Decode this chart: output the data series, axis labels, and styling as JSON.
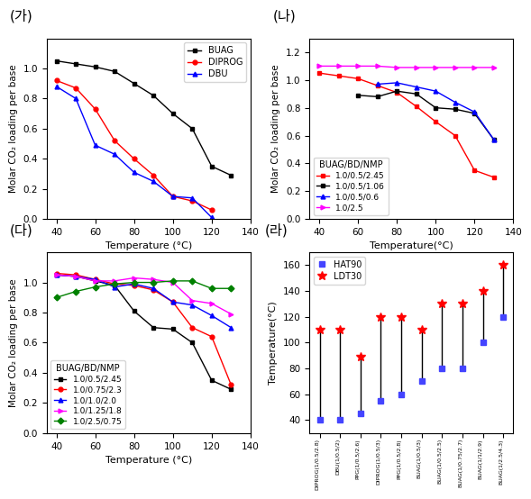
{
  "ga": {
    "title": "(가)",
    "xlabel": "Temperature (°C)",
    "ylabel": "Molar CO₂ loading per base",
    "xlim": [
      35,
      140
    ],
    "ylim": [
      0,
      1.2
    ],
    "xticks": [
      40,
      60,
      80,
      100,
      120,
      140
    ],
    "yticks": [
      0.0,
      0.2,
      0.4,
      0.6,
      0.8,
      1.0
    ],
    "series": [
      {
        "label": "BUAG",
        "color": "black",
        "marker": "s",
        "x": [
          40,
          50,
          60,
          70,
          80,
          90,
          100,
          110,
          120,
          130
        ],
        "y": [
          1.05,
          1.03,
          1.01,
          0.98,
          0.9,
          0.82,
          0.7,
          0.6,
          0.35,
          0.29
        ]
      },
      {
        "label": "DIPROG",
        "color": "red",
        "marker": "o",
        "x": [
          40,
          50,
          60,
          70,
          80,
          90,
          100,
          110,
          120
        ],
        "y": [
          0.92,
          0.87,
          0.73,
          0.52,
          0.4,
          0.29,
          0.15,
          0.12,
          0.06
        ]
      },
      {
        "label": "DBU",
        "color": "blue",
        "marker": "^",
        "x": [
          40,
          50,
          60,
          70,
          80,
          90,
          100,
          110,
          120
        ],
        "y": [
          0.88,
          0.8,
          0.49,
          0.43,
          0.31,
          0.25,
          0.15,
          0.14,
          0.01
        ]
      }
    ]
  },
  "na": {
    "title": "(나)",
    "xlabel": "Temperature(°C)",
    "ylabel": "Molar CO₂ loading per base",
    "xlim": [
      35,
      140
    ],
    "ylim": [
      0,
      1.3
    ],
    "xticks": [
      40,
      60,
      80,
      100,
      120,
      140
    ],
    "yticks": [
      0.0,
      0.2,
      0.4,
      0.6,
      0.8,
      1.0,
      1.2
    ],
    "legend_title": "BUAG/BD/NMP",
    "series": [
      {
        "label": "1.0/0.5/2.45",
        "color": "red",
        "marker": "s",
        "x": [
          40,
          50,
          60,
          70,
          80,
          90,
          100,
          110,
          120,
          130
        ],
        "y": [
          1.05,
          1.03,
          1.01,
          0.96,
          0.91,
          0.81,
          0.7,
          0.6,
          0.35,
          0.3
        ]
      },
      {
        "label": "1.0/0.5/1.06",
        "color": "black",
        "marker": "s",
        "x": [
          60,
          70,
          80,
          90,
          100,
          110,
          120,
          130
        ],
        "y": [
          0.89,
          0.88,
          0.92,
          0.9,
          0.8,
          0.79,
          0.76,
          0.57
        ]
      },
      {
        "label": "1.0/0.5/0.6",
        "color": "blue",
        "marker": "^",
        "x": [
          70,
          80,
          90,
          100,
          110,
          120,
          130
        ],
        "y": [
          0.97,
          0.98,
          0.95,
          0.92,
          0.84,
          0.77,
          0.57
        ]
      },
      {
        "label": "1.0/2.5",
        "color": "magenta",
        "marker": ">",
        "x": [
          40,
          50,
          60,
          70,
          80,
          90,
          100,
          110,
          120,
          130
        ],
        "y": [
          1.1,
          1.1,
          1.1,
          1.1,
          1.09,
          1.09,
          1.09,
          1.09,
          1.09,
          1.09
        ]
      }
    ]
  },
  "da": {
    "title": "(다)",
    "xlabel": "Temperature (°C)",
    "ylabel": "Molar CO₂ loading per base",
    "xlim": [
      35,
      140
    ],
    "ylim": [
      0,
      1.2
    ],
    "xticks": [
      40,
      60,
      80,
      100,
      120,
      140
    ],
    "yticks": [
      0.0,
      0.2,
      0.4,
      0.6,
      0.8,
      1.0
    ],
    "legend_title": "BUAG/BD/NMP",
    "series": [
      {
        "label": "1.0/0.5/2.45",
        "color": "black",
        "marker": "s",
        "x": [
          40,
          50,
          60,
          70,
          80,
          90,
          100,
          110,
          120,
          130
        ],
        "y": [
          1.05,
          1.04,
          1.01,
          0.98,
          0.81,
          0.7,
          0.69,
          0.6,
          0.35,
          0.29
        ]
      },
      {
        "label": "1.0/0.75/2.3",
        "color": "red",
        "marker": "o",
        "x": [
          40,
          50,
          60,
          70,
          80,
          90,
          100,
          110,
          120,
          130
        ],
        "y": [
          1.06,
          1.05,
          1.02,
          0.99,
          0.98,
          0.95,
          0.87,
          0.7,
          0.64,
          0.32
        ]
      },
      {
        "label": "1.0/1.0/2.0",
        "color": "blue",
        "marker": "^",
        "x": [
          40,
          50,
          60,
          70,
          80,
          90,
          100,
          110,
          120,
          130
        ],
        "y": [
          1.05,
          1.04,
          1.02,
          0.97,
          0.99,
          0.96,
          0.87,
          0.85,
          0.78,
          0.7
        ]
      },
      {
        "label": "1.0/1.25/1.8",
        "color": "magenta",
        "marker": ">",
        "x": [
          40,
          50,
          60,
          70,
          80,
          90,
          100,
          110,
          120,
          130
        ],
        "y": [
          1.05,
          1.04,
          1.01,
          1.01,
          1.03,
          1.02,
          1.0,
          0.88,
          0.86,
          0.79
        ]
      },
      {
        "label": "1.0/2.5/0.75",
        "color": "green",
        "marker": "D",
        "x": [
          40,
          50,
          60,
          70,
          80,
          90,
          100,
          110,
          120,
          130
        ],
        "y": [
          0.9,
          0.94,
          0.97,
          0.99,
          1.0,
          1.0,
          1.01,
          1.01,
          0.96,
          0.96
        ]
      }
    ]
  },
  "ra": {
    "title": "(라)",
    "ylabel": "Temperature(°C)",
    "ylim": [
      30,
      170
    ],
    "yticks": [
      40,
      60,
      80,
      100,
      120,
      140,
      160
    ],
    "categories": [
      "DIPROG(1/0.5/2.8)",
      "DBU(1/0.5/2)",
      "PPG(1/0.5/2.6)",
      "DIPROG(1/0.5/3)",
      "PPG(1/0.5/2.8)",
      "BUAG(1/0.5/3)",
      "BUAG(1/0.5/2.5)",
      "BUAG(1/0.75/2.7)",
      "BUAG(1/1/2.9)",
      "BUAG(1/2.5/4.3)"
    ],
    "hat90": [
      40,
      40,
      45,
      55,
      60,
      70,
      80,
      80,
      100,
      120
    ],
    "ldt30": [
      110,
      110,
      89,
      120,
      120,
      110,
      130,
      130,
      140,
      160
    ],
    "hat90_color": "#4444ff",
    "ldt30_color": "red",
    "hat90_marker": "s",
    "ldt30_marker": "*"
  }
}
